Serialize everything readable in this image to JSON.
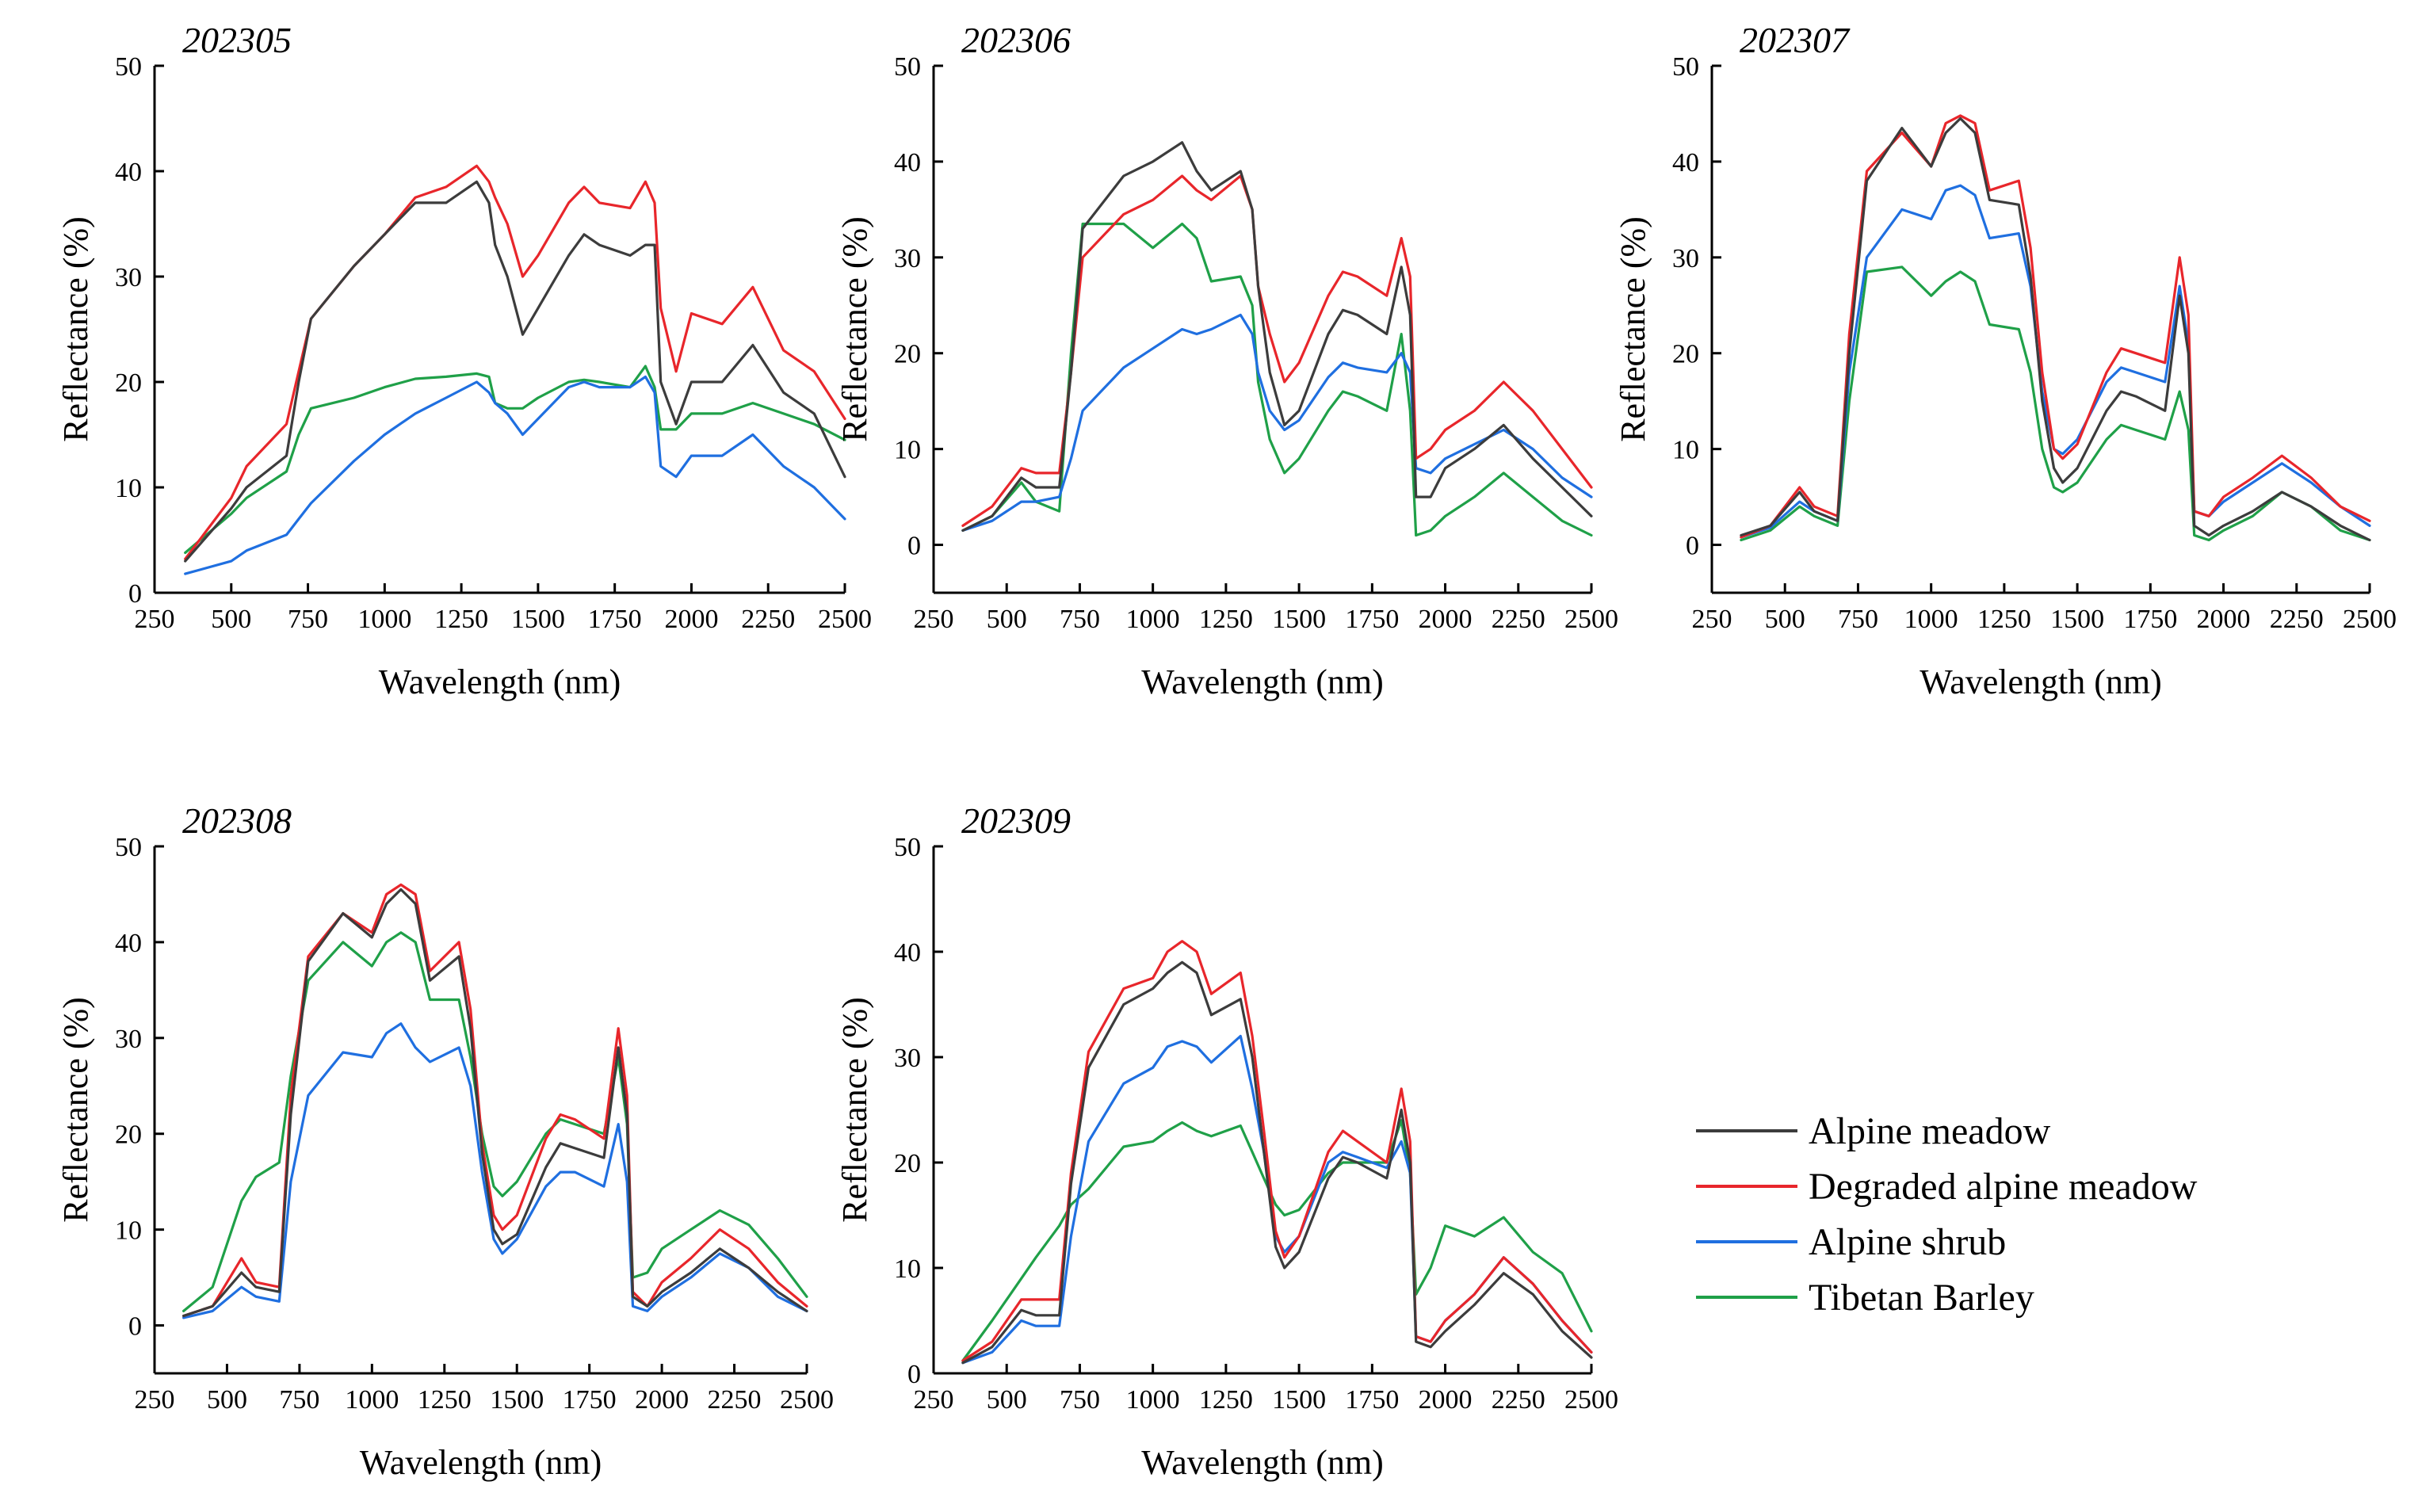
{
  "figure_domain": "Chart",
  "legend": {
    "items": [
      {
        "label": "Alpine meadow",
        "color": "#3c3c3c"
      },
      {
        "label": "Degraded alpine meadow",
        "color": "#e8262b"
      },
      {
        "label": "Alpine shrub",
        "color": "#1f6fe0"
      },
      {
        "label": "Tibetan Barley",
        "color": "#1fa048"
      }
    ]
  },
  "chart_data": [
    {
      "type": "line",
      "title": "202305",
      "xlabel": "Wavelength (nm)",
      "ylabel": "Reflectance (%)",
      "xlim": [
        250,
        2500
      ],
      "ylim": [
        0,
        50
      ],
      "xticks": [
        250,
        500,
        750,
        1000,
        1250,
        1500,
        1750,
        2000,
        2250,
        2500
      ],
      "yticks": [
        0,
        10,
        20,
        30,
        40,
        50
      ],
      "x": [
        350,
        500,
        550,
        680,
        720,
        760,
        900,
        1000,
        1100,
        1200,
        1300,
        1340,
        1360,
        1400,
        1450,
        1500,
        1600,
        1650,
        1700,
        1800,
        1850,
        1880,
        1900,
        1950,
        2000,
        2100,
        2200,
        2300,
        2400,
        2500
      ],
      "series": [
        {
          "name": "Alpine meadow",
          "color": "#3c3c3c",
          "values": [
            3,
            8,
            10,
            13,
            20,
            26,
            31,
            34,
            37,
            37,
            39,
            37,
            33,
            30,
            24.5,
            27,
            32,
            34,
            33,
            32,
            33,
            33,
            20,
            16,
            20,
            20,
            23.5,
            19,
            17,
            11
          ]
        },
        {
          "name": "Degraded alpine meadow",
          "color": "#e8262b",
          "values": [
            3.2,
            9,
            12,
            16,
            21,
            26,
            31,
            34,
            37.5,
            38.5,
            40.5,
            39,
            37.5,
            35,
            30,
            32,
            37,
            38.5,
            37,
            36.5,
            39,
            37,
            27,
            21,
            26.5,
            25.5,
            29,
            23,
            21,
            16.5
          ]
        },
        {
          "name": "Alpine shrub",
          "color": "#1f6fe0",
          "values": [
            1.8,
            3,
            4,
            5.5,
            7,
            8.5,
            12.5,
            15,
            17,
            18.5,
            20,
            19,
            18,
            17,
            15,
            16.5,
            19.5,
            20,
            19.5,
            19.5,
            20.5,
            19,
            12,
            11,
            13,
            13,
            15,
            12,
            10,
            7
          ]
        },
        {
          "name": "Tibetan Barley",
          "color": "#1fa048",
          "values": [
            3.8,
            7.5,
            9,
            11.5,
            15,
            17.5,
            18.5,
            19.5,
            20.3,
            20.5,
            20.8,
            20.5,
            18,
            17.5,
            17.5,
            18.5,
            20,
            20.2,
            20,
            19.5,
            21.5,
            19.5,
            15.5,
            15.5,
            17,
            17,
            18,
            17,
            16,
            14.5
          ]
        }
      ]
    },
    {
      "type": "line",
      "title": "202306",
      "xlabel": "Wavelength (nm)",
      "ylabel": "Reflectance (%)",
      "xlim": [
        250,
        2500
      ],
      "ylim": [
        -5,
        50
      ],
      "xticks": [
        250,
        500,
        750,
        1000,
        1250,
        1500,
        1750,
        2000,
        2250,
        2500
      ],
      "yticks": [
        0,
        10,
        20,
        30,
        40,
        50
      ],
      "x": [
        350,
        450,
        550,
        600,
        680,
        720,
        760,
        900,
        1000,
        1100,
        1150,
        1200,
        1300,
        1340,
        1360,
        1400,
        1450,
        1500,
        1600,
        1650,
        1700,
        1800,
        1850,
        1880,
        1900,
        1950,
        2000,
        2100,
        2200,
        2300,
        2400,
        2500
      ],
      "series": [
        {
          "name": "Alpine meadow",
          "color": "#3c3c3c",
          "values": [
            1.5,
            3,
            7,
            6,
            6,
            18,
            33,
            38.5,
            40,
            42,
            39,
            37,
            39,
            35,
            27,
            18,
            12.5,
            14,
            22,
            24.5,
            24,
            22,
            29,
            24,
            5,
            5,
            8,
            10,
            12.5,
            9,
            6,
            3
          ]
        },
        {
          "name": "Degraded alpine meadow",
          "color": "#e8262b",
          "values": [
            2,
            4,
            8,
            7.5,
            7.5,
            18,
            30,
            34.5,
            36,
            38.5,
            37,
            36,
            38.5,
            35,
            27,
            22,
            17,
            19,
            26,
            28.5,
            28,
            26,
            32,
            28,
            9,
            10,
            12,
            14,
            17,
            14,
            10,
            6
          ]
        },
        {
          "name": "Alpine shrub",
          "color": "#1f6fe0",
          "values": [
            1.5,
            2.5,
            4.5,
            4.5,
            5,
            9,
            14,
            18.5,
            20.5,
            22.5,
            22,
            22.5,
            24,
            22,
            18,
            14,
            12,
            13,
            17.5,
            19,
            18.5,
            18,
            20,
            18,
            8,
            7.5,
            9,
            10.5,
            12,
            10,
            7,
            5
          ]
        },
        {
          "name": "Tibetan Barley",
          "color": "#1fa048",
          "values": [
            1.5,
            3,
            6.5,
            4.5,
            3.5,
            20,
            33.5,
            33.5,
            31,
            33.5,
            32,
            27.5,
            28,
            25,
            17,
            11,
            7.5,
            9,
            14,
            16,
            15.5,
            14,
            22,
            14,
            1,
            1.5,
            3,
            5,
            7.5,
            5,
            2.5,
            1
          ]
        }
      ]
    },
    {
      "type": "line",
      "title": "202307",
      "xlabel": "Wavelength (nm)",
      "ylabel": "Reflectance (%)",
      "xlim": [
        250,
        2500
      ],
      "ylim": [
        -5,
        50
      ],
      "xticks": [
        250,
        500,
        750,
        1000,
        1250,
        1500,
        1750,
        2000,
        2250,
        2500
      ],
      "yticks": [
        0,
        10,
        20,
        30,
        40,
        50
      ],
      "x": [
        350,
        450,
        550,
        600,
        680,
        720,
        780,
        900,
        1000,
        1050,
        1100,
        1150,
        1200,
        1300,
        1340,
        1380,
        1420,
        1450,
        1500,
        1600,
        1650,
        1700,
        1800,
        1850,
        1880,
        1900,
        1950,
        2000,
        2100,
        2200,
        2300,
        2400,
        2500
      ],
      "series": [
        {
          "name": "Alpine meadow",
          "color": "#3c3c3c",
          "values": [
            1,
            2,
            5.5,
            3.5,
            2.5,
            20,
            38,
            43.5,
            39.5,
            43,
            44.5,
            43,
            36,
            35.5,
            28,
            15,
            8,
            6.5,
            8,
            14,
            16,
            15.5,
            14,
            26,
            20,
            2,
            1,
            2,
            3.5,
            5.5,
            4,
            2,
            0.5
          ]
        },
        {
          "name": "Degraded alpine meadow",
          "color": "#e8262b",
          "values": [
            0.8,
            2,
            6,
            4,
            3,
            22,
            39,
            43,
            39.5,
            44,
            44.8,
            44,
            37,
            38,
            31,
            18,
            10,
            9,
            10.5,
            18,
            20.5,
            20,
            19,
            30,
            24,
            3.5,
            3,
            5,
            7,
            9.3,
            7,
            4,
            2.5
          ]
        },
        {
          "name": "Alpine shrub",
          "color": "#1f6fe0",
          "values": [
            0.8,
            1.8,
            4.5,
            3.5,
            2.5,
            18,
            30,
            35,
            34,
            37,
            37.5,
            36.5,
            32,
            32.5,
            27,
            16,
            10,
            9.5,
            11,
            17,
            18.5,
            18,
            17,
            27,
            21,
            3.5,
            3,
            4.5,
            6.5,
            8.5,
            6.5,
            4,
            2
          ]
        },
        {
          "name": "Tibetan Barley",
          "color": "#1fa048",
          "values": [
            0.5,
            1.5,
            4,
            3,
            2,
            15,
            28.5,
            29,
            26,
            27.5,
            28.5,
            27.5,
            23,
            22.5,
            18,
            10,
            6,
            5.5,
            6.5,
            11,
            12.5,
            12,
            11,
            16,
            12,
            1,
            0.5,
            1.5,
            3,
            5.5,
            4,
            1.5,
            0.5
          ]
        }
      ]
    },
    {
      "type": "line",
      "title": "202308",
      "xlabel": "Wavelength (nm)",
      "ylabel": "Reflectance (%)",
      "xlim": [
        250,
        2500
      ],
      "ylim": [
        -5,
        50
      ],
      "xticks": [
        250,
        500,
        750,
        1000,
        1250,
        1500,
        1750,
        2000,
        2250,
        2500
      ],
      "yticks": [
        0,
        10,
        20,
        30,
        40,
        50
      ],
      "x": [
        350,
        450,
        550,
        600,
        680,
        720,
        780,
        900,
        1000,
        1050,
        1100,
        1150,
        1200,
        1300,
        1340,
        1380,
        1420,
        1450,
        1500,
        1600,
        1650,
        1700,
        1800,
        1850,
        1880,
        1900,
        1950,
        2000,
        2100,
        2200,
        2300,
        2400,
        2500
      ],
      "series": [
        {
          "name": "Alpine meadow",
          "color": "#3c3c3c",
          "values": [
            1,
            2,
            5.5,
            4,
            3.5,
            22,
            38,
            43,
            40.5,
            44,
            45.5,
            44,
            36,
            38.5,
            31,
            18,
            10,
            8.5,
            9.5,
            16.5,
            19,
            18.5,
            17.5,
            29,
            22,
            3,
            2,
            3.5,
            5.5,
            8,
            6,
            3.5,
            1.5
          ]
        },
        {
          "name": "Degraded alpine meadow",
          "color": "#e8262b",
          "values": [
            1,
            2,
            7,
            4.5,
            4,
            24,
            38.5,
            43,
            41,
            45,
            46,
            45,
            37,
            40,
            33,
            19,
            11.5,
            10,
            11.5,
            19.5,
            22,
            21.5,
            19.5,
            31,
            24,
            3.5,
            2,
            4.5,
            7,
            10,
            8,
            4.5,
            2
          ]
        },
        {
          "name": "Alpine shrub",
          "color": "#1f6fe0",
          "values": [
            0.8,
            1.5,
            4,
            3,
            2.5,
            15,
            24,
            28.5,
            28,
            30.5,
            31.5,
            29,
            27.5,
            29,
            25,
            16,
            9,
            7.5,
            9,
            14.5,
            16,
            16,
            14.5,
            21,
            15,
            2,
            1.5,
            3,
            5,
            7.5,
            6,
            3,
            1.5
          ]
        },
        {
          "name": "Tibetan Barley",
          "color": "#1fa048",
          "values": [
            1.5,
            4,
            13,
            15.5,
            17,
            26,
            36,
            40,
            37.5,
            40,
            41,
            40,
            34,
            34,
            28,
            20,
            14.5,
            13.5,
            15,
            20,
            21.5,
            21,
            20,
            28,
            21,
            5,
            5.5,
            8,
            10,
            12,
            10.5,
            7,
            3
          ]
        }
      ]
    },
    {
      "type": "line",
      "title": "202309",
      "xlabel": "Wavelength (nm)",
      "ylabel": "Reflectance (%)",
      "xlim": [
        250,
        2500
      ],
      "ylim": [
        0,
        50
      ],
      "xticks": [
        250,
        500,
        750,
        1000,
        1250,
        1500,
        1750,
        2000,
        2250,
        2500
      ],
      "yticks": [
        0,
        10,
        20,
        30,
        40,
        50
      ],
      "x": [
        350,
        450,
        550,
        600,
        680,
        720,
        780,
        900,
        1000,
        1050,
        1100,
        1150,
        1200,
        1300,
        1340,
        1380,
        1420,
        1450,
        1500,
        1600,
        1650,
        1700,
        1800,
        1850,
        1880,
        1900,
        1950,
        2000,
        2100,
        2200,
        2300,
        2400,
        2500
      ],
      "series": [
        {
          "name": "Alpine meadow",
          "color": "#3c3c3c",
          "values": [
            1,
            2.5,
            6,
            5.5,
            5.5,
            18,
            29,
            35,
            36.5,
            38,
            39,
            38,
            34,
            35.5,
            30,
            21,
            12,
            10,
            11.5,
            18.5,
            20.5,
            20,
            18.5,
            25,
            20,
            3,
            2.5,
            4,
            6.5,
            9.5,
            7.5,
            4,
            1.5
          ]
        },
        {
          "name": "Degraded alpine meadow",
          "color": "#e8262b",
          "values": [
            1.2,
            3,
            7,
            7,
            7,
            19,
            30.5,
            36.5,
            37.5,
            40,
            41,
            40,
            36,
            38,
            32,
            23,
            13.5,
            11,
            13,
            21,
            23,
            22,
            20,
            27,
            22,
            3.5,
            3,
            5,
            7.5,
            11,
            8.5,
            5,
            2
          ]
        },
        {
          "name": "Alpine shrub",
          "color": "#1f6fe0",
          "values": [
            1,
            2,
            5,
            4.5,
            4.5,
            13,
            22,
            27.5,
            29,
            31,
            31.5,
            31,
            29.5,
            32,
            27,
            21,
            13,
            11.5,
            13,
            20,
            21,
            20.5,
            19.5,
            22,
            19,
            3.5,
            3,
            5,
            7.5,
            11,
            8.5,
            5,
            2
          ]
        },
        {
          "name": "Tibetan Barley",
          "color": "#1fa048",
          "values": [
            1.2,
            5,
            9,
            11,
            14,
            16,
            17.5,
            21.5,
            22,
            23,
            23.8,
            23,
            22.5,
            23.5,
            21,
            18.5,
            16,
            15,
            15.5,
            19,
            20,
            20,
            20,
            24,
            19,
            7.5,
            10,
            14,
            13,
            14.8,
            11.5,
            9.5,
            4
          ]
        }
      ]
    }
  ]
}
